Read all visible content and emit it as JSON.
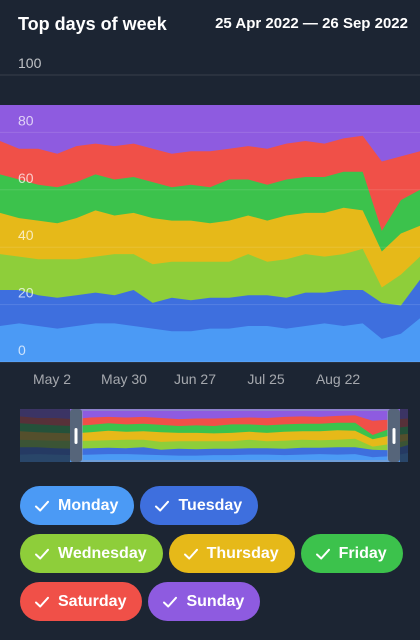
{
  "header": {
    "title": "Top days of week",
    "date_range": "25 Apr 2022 — 26 Sep 2022"
  },
  "legend": {
    "check_icon": "check-icon"
  },
  "chart_data": {
    "type": "area",
    "stacking": "percent",
    "title": "Top days of week",
    "ylim": [
      0,
      100
    ],
    "y_ticks": [
      0,
      20,
      40,
      60,
      80,
      100
    ],
    "grid": true,
    "x_ticks": [
      "May 2",
      "May 30",
      "Jun 27",
      "Jul 25",
      "Aug 22"
    ],
    "x": [
      "Apr 25",
      "May 2",
      "May 9",
      "May 16",
      "May 23",
      "May 30",
      "Jun 6",
      "Jun 13",
      "Jun 20",
      "Jun 27",
      "Jul 4",
      "Jul 11",
      "Jul 18",
      "Jul 25",
      "Aug 1",
      "Aug 8",
      "Aug 15",
      "Aug 22",
      "Aug 29",
      "Sep 5",
      "Sep 12",
      "Sep 19",
      "Sep 26"
    ],
    "series": [
      {
        "name": "Monday",
        "color": "#4b9af5",
        "values": [
          14,
          15,
          14,
          13,
          14,
          15,
          15,
          14,
          13,
          12,
          12,
          13,
          13,
          14,
          14,
          13,
          14,
          15,
          14,
          15,
          9,
          11,
          17
        ]
      },
      {
        "name": "Tuesday",
        "color": "#3e6fde",
        "values": [
          14,
          13,
          12,
          12,
          12,
          12,
          11,
          14,
          10,
          13,
          12,
          12,
          12,
          12,
          12,
          12,
          13,
          12,
          14,
          13,
          14,
          11,
          15
        ]
      },
      {
        "name": "Wednesday",
        "color": "#8ece3a",
        "values": [
          14,
          13,
          14,
          15,
          14,
          14,
          16,
          14,
          15,
          14,
          15,
          14,
          14,
          16,
          13,
          15,
          15,
          14,
          14,
          16,
          6,
          12,
          9
        ]
      },
      {
        "name": "Thursday",
        "color": "#e6b919",
        "values": [
          16,
          15,
          15,
          14,
          16,
          18,
          15,
          16,
          18,
          16,
          16,
          15,
          16,
          15,
          16,
          17,
          16,
          17,
          18,
          15,
          14,
          16,
          12
        ]
      },
      {
        "name": "Friday",
        "color": "#3cc24c",
        "values": [
          15,
          15,
          14,
          14,
          14,
          14,
          14,
          14,
          14,
          13,
          14,
          14,
          16,
          14,
          14,
          14,
          14,
          14,
          14,
          15,
          8,
          13,
          14
        ]
      },
      {
        "name": "Saturday",
        "color": "#f05048",
        "values": [
          13,
          12,
          14,
          13,
          14,
          12,
          13,
          13,
          13,
          13,
          13,
          14,
          12,
          13,
          14,
          14,
          14,
          13,
          13,
          14,
          27,
          17,
          15
        ]
      },
      {
        "name": "Sunday",
        "color": "#8e5be0",
        "values": [
          14,
          17,
          17,
          19,
          16,
          15,
          16,
          15,
          17,
          19,
          18,
          18,
          17,
          16,
          17,
          15,
          14,
          15,
          13,
          12,
          22,
          20,
          18
        ]
      }
    ]
  }
}
